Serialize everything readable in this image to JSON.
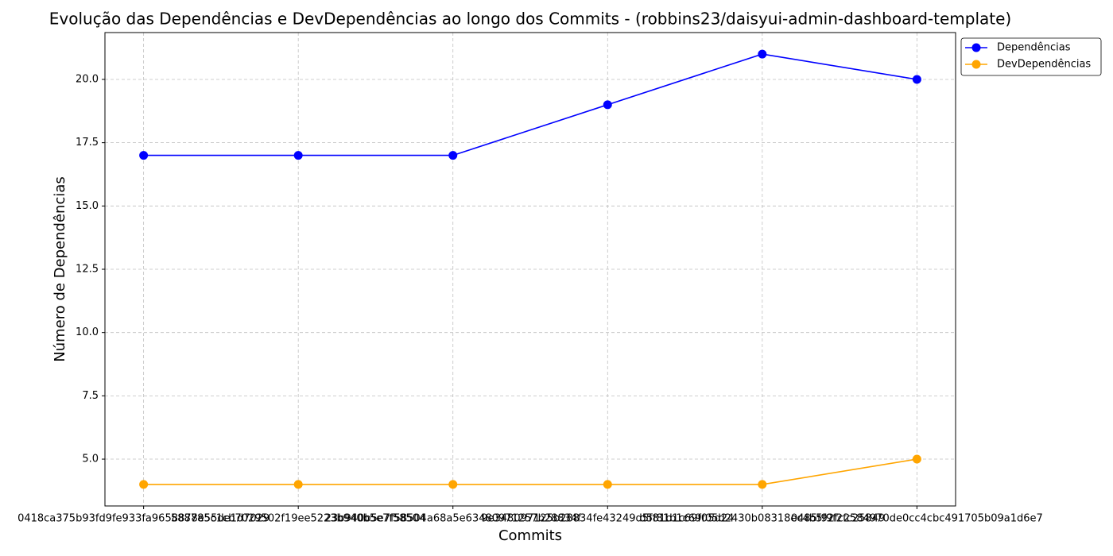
{
  "chart_data": {
    "type": "line",
    "title": "Evolução das Dependências e DevDependências ao longo dos Commits - (robbins23/daisyui-admin-dashboard-template)",
    "x_label": "Commits",
    "y_label": "Número de Dependências",
    "categories": [
      "0418ca375b93fd9fe933fa9658878e55de1d7029",
      "588785c1cb7029502f19ee5223b940b5e7f58504",
      "23b940b5e7f58504a68a5e63480971257b28834f",
      "9e348097125b28834fe43249d5f81b1c69f05d24",
      "d5f81b1c69f05d2430b08318ec4b5f9f2fc25849",
      "0485f92fc2584970de0cc4cbc491705b09a1d6e7"
    ],
    "series": [
      {
        "name": "Dependências",
        "color": "#0000ff",
        "values": [
          17,
          17,
          17,
          19,
          21,
          20
        ]
      },
      {
        "name": "DevDependências",
        "color": "#ffa500",
        "values": [
          4,
          4,
          4,
          4,
          4,
          5
        ]
      }
    ],
    "ylim": [
      3.15,
      21.85
    ],
    "yticks": [
      {
        "value": 5,
        "label": "5.0"
      },
      {
        "value": 7.5,
        "label": "7.5"
      },
      {
        "value": 10,
        "label": "10.0"
      },
      {
        "value": 12.5,
        "label": "12.5"
      },
      {
        "value": 15,
        "label": "15.0"
      },
      {
        "value": 17.5,
        "label": "17.5"
      },
      {
        "value": 20,
        "label": "20.0"
      }
    ],
    "grid": true,
    "legend": "outside-upper-right"
  }
}
